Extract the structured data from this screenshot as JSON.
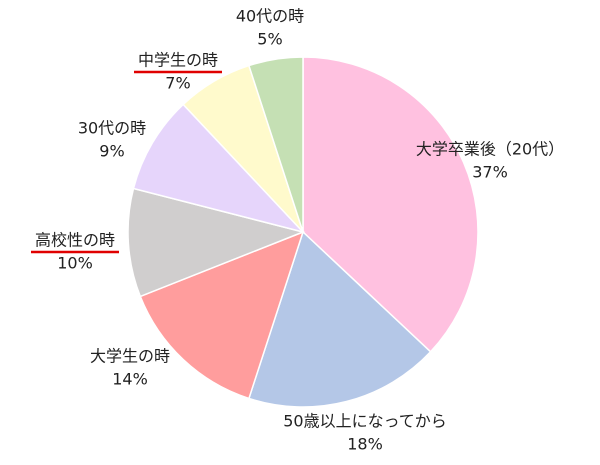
{
  "chart_data": {
    "type": "pie",
    "categories": [
      "大学卒業後（20代）",
      "50歳以上になってから",
      "大学生の時",
      "高校性の時",
      "30代の時",
      "中学生の時",
      "40代の時"
    ],
    "values": [
      37,
      18,
      14,
      10,
      9,
      7,
      5
    ],
    "value_labels": [
      "37%",
      "18%",
      "14%",
      "10%",
      "9%",
      "7%",
      "5%"
    ],
    "colors": [
      "#ffc1e0",
      "#b4c7e7",
      "#ff9d9d",
      "#d0cece",
      "#e6d5fb",
      "#fffacc",
      "#c5e0b4"
    ],
    "underlined": [
      false,
      false,
      false,
      true,
      false,
      true,
      false
    ],
    "underline_color": "#e00000"
  }
}
